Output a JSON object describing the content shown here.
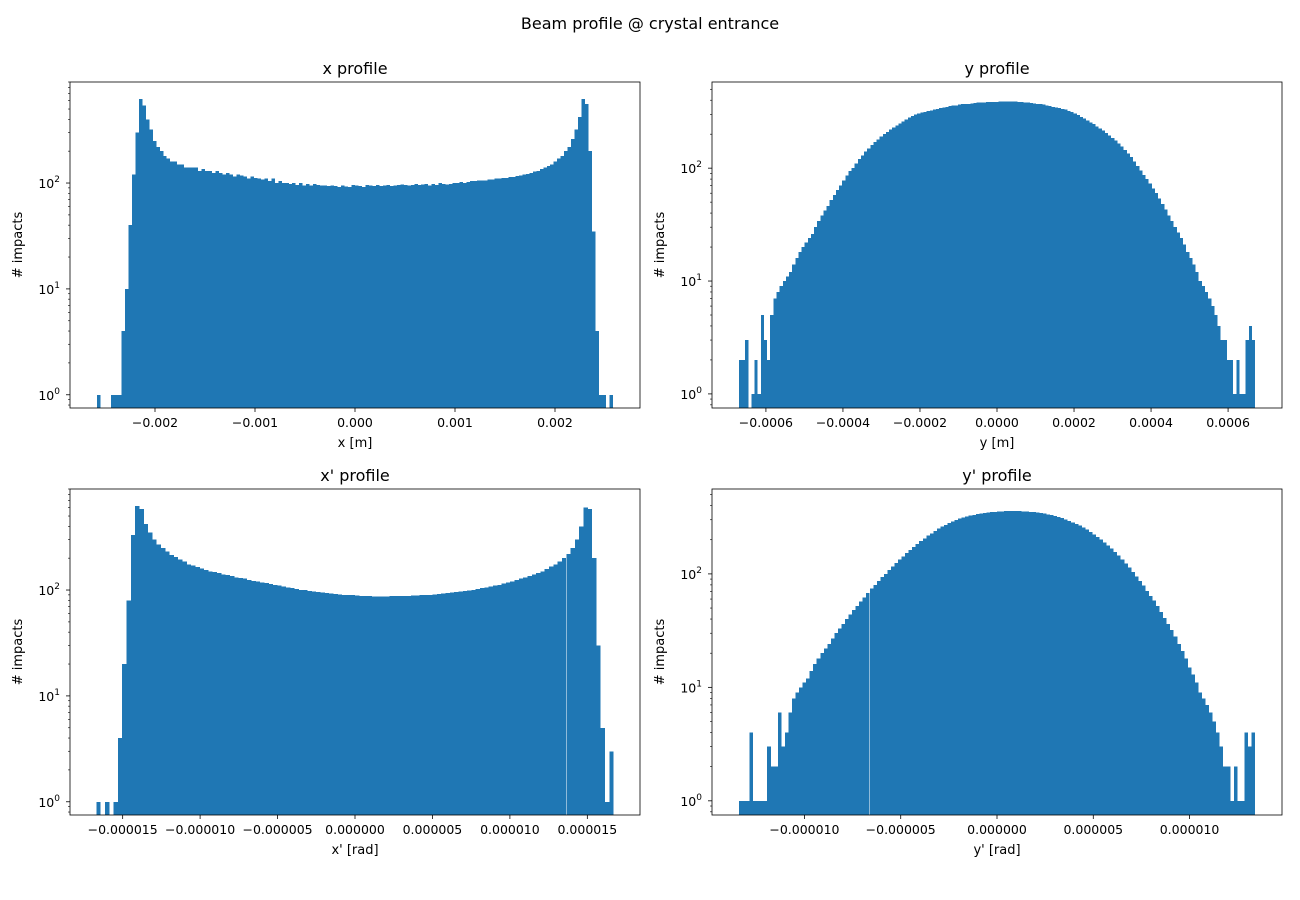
{
  "figure": {
    "suptitle": "Beam profile @ crystal entrance",
    "bar_color": "#1f77b4"
  },
  "chart_data": [
    {
      "type": "bar",
      "title": "x profile",
      "xlabel": "x [m]",
      "ylabel": "# impacts",
      "yscale": "log",
      "xlim": [
        -0.00285,
        0.00285
      ],
      "ylim": [
        0.75,
        900
      ],
      "x_ticks": [
        -0.002,
        -0.001,
        0.0,
        0.001,
        0.002
      ],
      "x_tick_labels": [
        "−0.002",
        "−0.001",
        "0.000",
        "0.001",
        "0.002"
      ],
      "y_ticks": [
        1,
        10,
        100
      ],
      "y_tick_labels": [
        "10",
        "10",
        "10"
      ],
      "y_tick_exponents": [
        "0",
        "1",
        "2"
      ],
      "grid": false,
      "bin_range": [
        -0.00258,
        0.00258
      ],
      "values": [
        1,
        0,
        0,
        0,
        1,
        1,
        1,
        4,
        10,
        40,
        120,
        300,
        620,
        540,
        400,
        320,
        250,
        220,
        200,
        180,
        170,
        160,
        160,
        150,
        150,
        140,
        140,
        140,
        140,
        130,
        135,
        130,
        130,
        125,
        130,
        125,
        120,
        125,
        120,
        115,
        120,
        118,
        115,
        110,
        115,
        112,
        110,
        108,
        110,
        105,
        110,
        100,
        105,
        100,
        100,
        98,
        100,
        96,
        100,
        95,
        98,
        95,
        98,
        96,
        95,
        95,
        94,
        95,
        94,
        92,
        95,
        93,
        92,
        96,
        95,
        94,
        92,
        96,
        95,
        94,
        96,
        94,
        95,
        96,
        94,
        95,
        96,
        97,
        96,
        95,
        96,
        98,
        96,
        97,
        98,
        95,
        98,
        96,
        100,
        98,
        97,
        98,
        100,
        100,
        102,
        100,
        102,
        104,
        104,
        106,
        106,
        106,
        108,
        108,
        110,
        110,
        112,
        112,
        114,
        114,
        116,
        118,
        120,
        122,
        125,
        128,
        130,
        135,
        140,
        145,
        150,
        160,
        170,
        180,
        200,
        220,
        260,
        320,
        420,
        620,
        560,
        200,
        35,
        4,
        1,
        1,
        0,
        1
      ],
      "tick_format": 3
    },
    {
      "type": "bar",
      "title": "y profile",
      "xlabel": "y [m]",
      "ylabel": "# impacts",
      "yscale": "log",
      "xlim": [
        -0.00074,
        0.00074
      ],
      "ylim": [
        0.75,
        580
      ],
      "x_ticks": [
        -0.0006,
        -0.0004,
        -0.0002,
        0.0,
        0.0002,
        0.0004,
        0.0006
      ],
      "x_tick_labels": [
        "−0.0006",
        "−0.0004",
        "−0.0002",
        "0.0000",
        "0.0002",
        "0.0004",
        "0.0006"
      ],
      "y_ticks": [
        1,
        10,
        100
      ],
      "y_tick_labels": [
        "10",
        "10",
        "10"
      ],
      "y_tick_exponents": [
        "0",
        "1",
        "2"
      ],
      "grid": false,
      "bin_range": [
        -0.00067,
        0.00067
      ],
      "values": [
        2,
        2,
        3,
        0,
        1,
        2,
        1,
        5,
        3,
        2,
        5,
        7,
        8,
        9,
        10,
        11,
        12,
        14,
        16,
        18,
        20,
        22,
        24,
        26,
        30,
        34,
        38,
        42,
        46,
        52,
        58,
        64,
        70,
        78,
        86,
        94,
        100,
        110,
        120,
        130,
        140,
        150,
        160,
        170,
        180,
        190,
        200,
        210,
        220,
        230,
        240,
        250,
        260,
        270,
        280,
        290,
        300,
        305,
        310,
        315,
        320,
        325,
        330,
        335,
        340,
        345,
        350,
        355,
        360,
        360,
        365,
        370,
        370,
        372,
        375,
        378,
        380,
        380,
        382,
        384,
        385,
        386,
        387,
        388,
        389,
        390,
        390,
        390,
        388,
        386,
        384,
        382,
        380,
        378,
        375,
        372,
        370,
        365,
        360,
        355,
        350,
        345,
        340,
        335,
        330,
        322,
        315,
        305,
        295,
        285,
        275,
        265,
        255,
        245,
        235,
        225,
        215,
        205,
        195,
        185,
        175,
        165,
        155,
        145,
        135,
        125,
        115,
        105,
        95,
        87,
        80,
        73,
        66,
        60,
        54,
        48,
        43,
        38,
        34,
        30,
        27,
        24,
        21,
        18,
        16,
        14,
        12,
        10,
        9,
        8,
        7,
        6,
        5,
        4,
        3,
        3,
        2,
        2,
        1,
        2,
        1,
        1,
        3,
        4,
        3
      ],
      "tick_format": 4
    },
    {
      "type": "bar",
      "title": "x' profile",
      "xlabel": "x' [rad]",
      "ylabel": "# impacts",
      "yscale": "log",
      "xlim": [
        -1.84e-05,
        1.84e-05
      ],
      "ylim": [
        0.75,
        900
      ],
      "x_ticks": [
        -1.5e-05,
        -1e-05,
        -5e-06,
        0.0,
        5e-06,
        1e-05,
        1.5e-05
      ],
      "x_tick_labels": [
        "−0.000015",
        "−0.000010",
        "−0.000005",
        "0.000000",
        "0.000005",
        "0.000010",
        "0.000015"
      ],
      "y_ticks": [
        1,
        10,
        100
      ],
      "y_tick_labels": [
        "10",
        "10",
        "10"
      ],
      "y_tick_exponents": [
        "0",
        "1",
        "2"
      ],
      "grid": false,
      "bin_range": [
        -1.67e-05,
        1.67e-05
      ],
      "values": [
        1,
        0,
        1,
        0,
        1,
        4,
        20,
        80,
        330,
        620,
        580,
        420,
        350,
        300,
        270,
        250,
        230,
        215,
        205,
        195,
        185,
        175,
        170,
        165,
        160,
        155,
        150,
        148,
        145,
        140,
        138,
        135,
        132,
        130,
        128,
        125,
        122,
        120,
        118,
        116,
        114,
        112,
        110,
        108,
        106,
        104,
        102,
        100,
        100,
        98,
        97,
        96,
        95,
        94,
        93,
        92,
        91,
        90,
        90,
        90,
        89,
        88,
        88,
        88,
        87,
        87,
        87,
        87,
        88,
        88,
        88,
        88,
        88,
        89,
        89,
        90,
        90,
        90,
        91,
        92,
        93,
        94,
        95,
        96,
        97,
        98,
        99,
        100,
        102,
        104,
        106,
        108,
        110,
        112,
        115,
        118,
        121,
        124,
        128,
        132,
        136,
        140,
        145,
        150,
        158,
        166,
        175,
        185,
        200,
        220,
        250,
        300,
        400,
        600,
        580,
        200,
        30,
        5,
        1,
        3
      ],
      "tick_format": 6
    },
    {
      "type": "bar",
      "title": "y' profile",
      "xlabel": "y' [rad]",
      "ylabel": "# impacts",
      "yscale": "log",
      "xlim": [
        -1.48e-05,
        1.48e-05
      ],
      "ylim": [
        0.75,
        560
      ],
      "x_ticks": [
        -1e-05,
        -5e-06,
        0.0,
        5e-06,
        1e-05
      ],
      "x_tick_labels": [
        "−0.000010",
        "−0.000005",
        "0.000000",
        "0.000005",
        "0.000010"
      ],
      "y_ticks": [
        1,
        10,
        100
      ],
      "y_tick_labels": [
        "10",
        "10",
        "10"
      ],
      "y_tick_exponents": [
        "0",
        "1",
        "2"
      ],
      "grid": false,
      "bin_range": [
        -1.34e-05,
        1.34e-05
      ],
      "values": [
        1,
        1,
        1,
        4,
        1,
        1,
        1,
        1,
        3,
        2,
        2,
        6,
        3,
        4,
        6,
        8,
        9,
        10,
        11,
        12,
        14,
        16,
        18,
        20,
        22,
        24,
        27,
        30,
        33,
        36,
        40,
        44,
        48,
        52,
        57,
        62,
        68,
        74,
        80,
        87,
        94,
        100,
        108,
        116,
        125,
        134,
        143,
        153,
        163,
        173,
        184,
        195,
        206,
        217,
        228,
        239,
        250,
        261,
        271,
        281,
        290,
        299,
        307,
        314,
        320,
        326,
        331,
        336,
        340,
        344,
        347,
        350,
        352,
        354,
        356,
        357,
        358,
        358,
        358,
        357,
        356,
        354,
        352,
        350,
        347,
        343,
        339,
        334,
        329,
        323,
        317,
        310,
        302,
        294,
        285,
        276,
        266,
        256,
        245,
        234,
        223,
        212,
        200,
        189,
        178,
        167,
        156,
        145,
        134,
        124,
        114,
        104,
        95,
        87,
        79,
        71,
        64,
        58,
        52,
        46,
        41,
        36,
        32,
        28,
        24,
        21,
        18,
        15,
        13,
        11,
        9,
        8,
        7,
        6,
        5,
        4,
        3,
        2,
        2,
        1,
        2,
        1,
        1,
        4,
        3,
        4
      ],
      "tick_format": 6
    }
  ]
}
